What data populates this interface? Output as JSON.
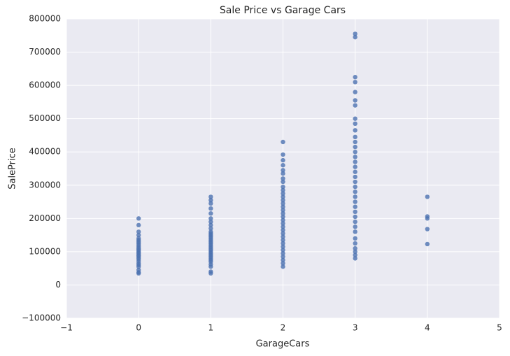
{
  "chart_data": {
    "type": "scatter",
    "title": "Sale Price vs Garage Cars",
    "x_label": "GarageCars",
    "y_label": "SalePrice",
    "color": "#4c72b0",
    "grid": true,
    "xlim": [
      -1,
      5
    ],
    "xticks": [
      {
        "value": -1,
        "label": "−1"
      },
      0,
      1,
      2,
      3,
      4,
      5
    ],
    "ylim": [
      -100000,
      800000
    ],
    "yticks": [
      {
        "value": -100000,
        "label": "−100000"
      },
      0,
      100000,
      200000,
      300000,
      400000,
      500000,
      600000,
      700000,
      800000
    ],
    "x": [
      0,
      0,
      0,
      0,
      0,
      0,
      0,
      0,
      0,
      0,
      0,
      0,
      0,
      0,
      0,
      0,
      0,
      0,
      0,
      0,
      0,
      0,
      0,
      0,
      0,
      0,
      1,
      1,
      1,
      1,
      1,
      1,
      1,
      1,
      1,
      1,
      1,
      1,
      1,
      1,
      1,
      1,
      1,
      1,
      1,
      1,
      1,
      1,
      1,
      1,
      1,
      1,
      1,
      1,
      1,
      1,
      1,
      1,
      2,
      2,
      2,
      2,
      2,
      2,
      2,
      2,
      2,
      2,
      2,
      2,
      2,
      2,
      2,
      2,
      2,
      2,
      2,
      2,
      2,
      2,
      2,
      2,
      2,
      2,
      2,
      2,
      2,
      2,
      2,
      2,
      2,
      3,
      3,
      3,
      3,
      3,
      3,
      3,
      3,
      3,
      3,
      3,
      3,
      3,
      3,
      3,
      3,
      3,
      3,
      3,
      3,
      3,
      3,
      3,
      3,
      3,
      3,
      3,
      3,
      3,
      3,
      3,
      3,
      3,
      3,
      3,
      3,
      4,
      4,
      4,
      4,
      4
    ],
    "values": [
      35000,
      38000,
      45000,
      55000,
      60000,
      65000,
      72000,
      78000,
      82000,
      87000,
      90000,
      95000,
      98000,
      102000,
      106000,
      110000,
      115000,
      120000,
      125000,
      130000,
      135000,
      140000,
      150000,
      160000,
      180000,
      200000,
      35000,
      40000,
      55000,
      62000,
      70000,
      75000,
      80000,
      85000,
      90000,
      95000,
      100000,
      105000,
      110000,
      115000,
      120000,
      125000,
      130000,
      135000,
      140000,
      145000,
      150000,
      155000,
      160000,
      170000,
      180000,
      190000,
      200000,
      215000,
      230000,
      245000,
      255000,
      265000,
      55000,
      65000,
      75000,
      85000,
      95000,
      105000,
      115000,
      125000,
      135000,
      145000,
      155000,
      165000,
      175000,
      185000,
      195000,
      205000,
      215000,
      225000,
      235000,
      245000,
      255000,
      265000,
      275000,
      285000,
      295000,
      310000,
      320000,
      335000,
      345000,
      360000,
      375000,
      392000,
      430000,
      80000,
      90000,
      100000,
      110000,
      125000,
      140000,
      160000,
      175000,
      190000,
      205000,
      220000,
      235000,
      250000,
      265000,
      280000,
      295000,
      310000,
      325000,
      340000,
      355000,
      370000,
      385000,
      400000,
      415000,
      430000,
      445000,
      465000,
      485000,
      500000,
      540000,
      555000,
      580000,
      610000,
      625000,
      745000,
      755000,
      123000,
      168000,
      200000,
      206000,
      265000
    ]
  }
}
